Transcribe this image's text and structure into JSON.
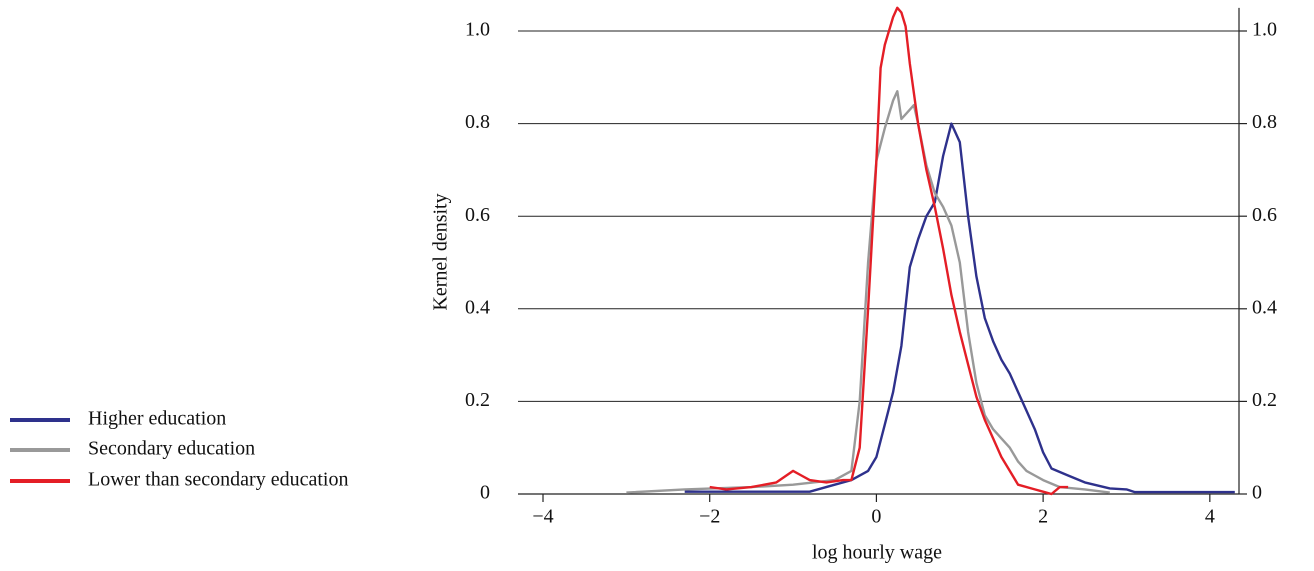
{
  "chart_data": {
    "type": "line",
    "xlabel": "log hourly wage",
    "ylabel": "Kernel density",
    "xlim": [
      -4.3,
      4.35
    ],
    "ylim": [
      0,
      1.05
    ],
    "xticks": [
      {
        "value": -4,
        "label": "−4"
      },
      {
        "value": -2,
        "label": "−2"
      },
      0,
      2,
      4
    ],
    "yticks": [
      0,
      0.2,
      0.4,
      0.6,
      0.8,
      {
        "value": 1,
        "label": "1.0"
      }
    ],
    "grid": true,
    "legend": "lower left outside",
    "series": [
      {
        "name": "Higher education",
        "color": "#2e318c",
        "x": [
          -2.3,
          -0.8,
          -0.5,
          -0.3,
          -0.1,
          0.0,
          0.1,
          0.2,
          0.3,
          0.4,
          0.5,
          0.6,
          0.7,
          0.8,
          0.9,
          1.0,
          1.1,
          1.2,
          1.3,
          1.4,
          1.5,
          1.6,
          1.7,
          1.8,
          1.9,
          2.0,
          2.1,
          2.3,
          2.5,
          2.8,
          3.0,
          3.1,
          4.3
        ],
        "values": [
          0.005,
          0.005,
          0.02,
          0.03,
          0.05,
          0.08,
          0.15,
          0.22,
          0.32,
          0.49,
          0.55,
          0.6,
          0.63,
          0.73,
          0.8,
          0.76,
          0.6,
          0.47,
          0.38,
          0.33,
          0.29,
          0.26,
          0.22,
          0.18,
          0.14,
          0.09,
          0.055,
          0.04,
          0.025,
          0.012,
          0.01,
          0.004,
          0.004
        ]
      },
      {
        "name": "Secondary education",
        "color": "#999999",
        "x": [
          -3.0,
          -2.3,
          -1.5,
          -1.0,
          -0.5,
          -0.3,
          -0.2,
          -0.1,
          0.0,
          0.1,
          0.2,
          0.25,
          0.3,
          0.4,
          0.45,
          0.5,
          0.6,
          0.7,
          0.8,
          0.9,
          1.0,
          1.1,
          1.2,
          1.3,
          1.4,
          1.5,
          1.6,
          1.7,
          1.8,
          1.9,
          2.0,
          2.2,
          2.5,
          2.8
        ],
        "values": [
          0.003,
          0.01,
          0.015,
          0.02,
          0.03,
          0.05,
          0.2,
          0.5,
          0.72,
          0.79,
          0.85,
          0.87,
          0.81,
          0.83,
          0.84,
          0.8,
          0.71,
          0.65,
          0.62,
          0.58,
          0.5,
          0.35,
          0.24,
          0.17,
          0.14,
          0.12,
          0.1,
          0.07,
          0.05,
          0.04,
          0.03,
          0.015,
          0.01,
          0.003
        ]
      },
      {
        "name": "Lower than secondary education",
        "color": "#e41e26",
        "x": [
          -2.0,
          -1.8,
          -1.5,
          -1.2,
          -1.0,
          -0.9,
          -0.8,
          -0.6,
          -0.4,
          -0.3,
          -0.2,
          -0.1,
          0.0,
          0.05,
          0.1,
          0.2,
          0.25,
          0.3,
          0.35,
          0.4,
          0.5,
          0.6,
          0.7,
          0.8,
          0.9,
          1.0,
          1.1,
          1.2,
          1.3,
          1.4,
          1.5,
          1.6,
          1.7,
          1.9,
          2.0,
          2.1,
          2.2,
          2.3
        ],
        "values": [
          0.015,
          0.01,
          0.015,
          0.025,
          0.05,
          0.04,
          0.03,
          0.025,
          0.03,
          0.03,
          0.1,
          0.4,
          0.72,
          0.92,
          0.97,
          1.03,
          1.05,
          1.04,
          1.01,
          0.93,
          0.8,
          0.7,
          0.62,
          0.53,
          0.43,
          0.35,
          0.28,
          0.21,
          0.16,
          0.12,
          0.08,
          0.05,
          0.02,
          0.01,
          0.005,
          0.0,
          0.015,
          0.015
        ]
      }
    ]
  }
}
